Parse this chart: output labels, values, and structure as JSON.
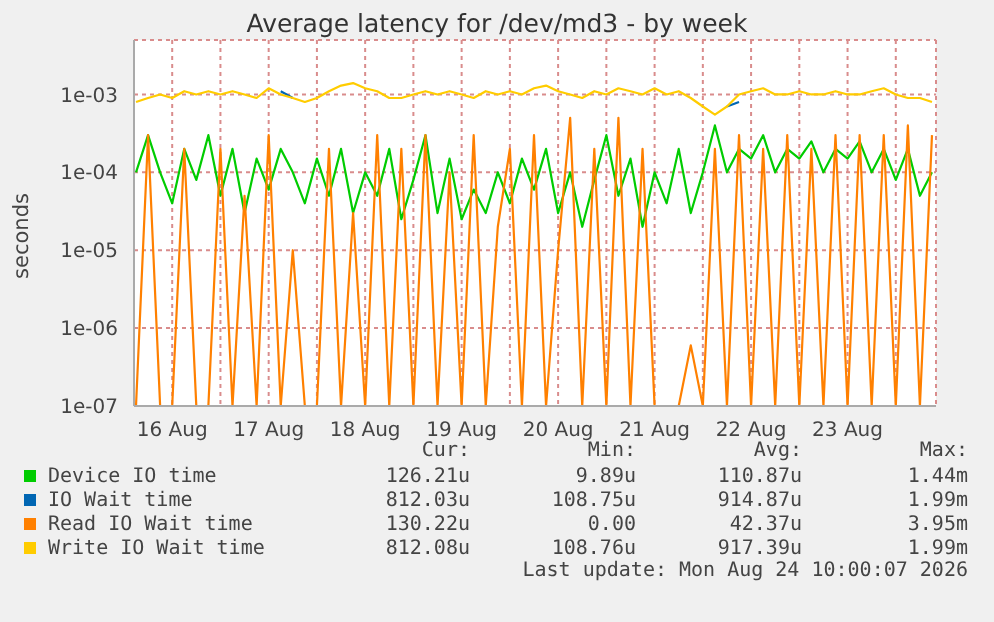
{
  "chart_data": {
    "type": "line",
    "title": "Average latency for /dev/md3 - by week",
    "ylabel": "seconds",
    "log": "y",
    "grid": true,
    "legend": "bottom",
    "marker": "none",
    "line_style": "solid",
    "ylim": [
      1e-07,
      0.005
    ],
    "yticks": [
      {
        "value": 1e-07,
        "label": "1e-07"
      },
      {
        "value": 1e-06,
        "label": "1e-06"
      },
      {
        "value": 1e-05,
        "label": "1e-05"
      },
      {
        "value": 0.0001,
        "label": "1e-04"
      },
      {
        "value": 0.001,
        "label": "1e-03"
      }
    ],
    "xlim": [
      "2026-08-16T02:30",
      "2026-08-24T10:00"
    ],
    "xticks": [
      {
        "value": "2026-08-16T12:00",
        "label": "16 Aug"
      },
      {
        "value": "2026-08-17T00:00",
        "label": null
      },
      {
        "value": "2026-08-17T12:00",
        "label": "17 Aug"
      },
      {
        "value": "2026-08-18T00:00",
        "label": null
      },
      {
        "value": "2026-08-18T12:00",
        "label": "18 Aug"
      },
      {
        "value": "2026-08-19T00:00",
        "label": null
      },
      {
        "value": "2026-08-19T12:00",
        "label": "19 Aug"
      },
      {
        "value": "2026-08-20T00:00",
        "label": null
      },
      {
        "value": "2026-08-20T12:00",
        "label": "20 Aug"
      },
      {
        "value": "2026-08-21T00:00",
        "label": null
      },
      {
        "value": "2026-08-21T12:00",
        "label": "21 Aug"
      },
      {
        "value": "2026-08-22T00:00",
        "label": null
      },
      {
        "value": "2026-08-22T12:00",
        "label": "22 Aug"
      },
      {
        "value": "2026-08-23T00:00",
        "label": null
      },
      {
        "value": "2026-08-23T12:00",
        "label": "23 Aug"
      },
      {
        "value": "2026-08-24T00:00",
        "label": null
      }
    ],
    "x": [
      "2026-08-16T03:00",
      "2026-08-16T06:00",
      "2026-08-16T09:00",
      "2026-08-16T12:00",
      "2026-08-16T15:00",
      "2026-08-16T18:00",
      "2026-08-16T21:00",
      "2026-08-17T00:00",
      "2026-08-17T03:00",
      "2026-08-17T06:00",
      "2026-08-17T09:00",
      "2026-08-17T12:00",
      "2026-08-17T15:00",
      "2026-08-17T18:00",
      "2026-08-17T21:00",
      "2026-08-18T00:00",
      "2026-08-18T03:00",
      "2026-08-18T06:00",
      "2026-08-18T09:00",
      "2026-08-18T12:00",
      "2026-08-18T15:00",
      "2026-08-18T18:00",
      "2026-08-18T21:00",
      "2026-08-19T00:00",
      "2026-08-19T03:00",
      "2026-08-19T06:00",
      "2026-08-19T09:00",
      "2026-08-19T12:00",
      "2026-08-19T15:00",
      "2026-08-19T18:00",
      "2026-08-19T21:00",
      "2026-08-20T00:00",
      "2026-08-20T03:00",
      "2026-08-20T06:00",
      "2026-08-20T09:00",
      "2026-08-20T12:00",
      "2026-08-20T15:00",
      "2026-08-20T18:00",
      "2026-08-20T21:00",
      "2026-08-21T00:00",
      "2026-08-21T03:00",
      "2026-08-21T06:00",
      "2026-08-21T09:00",
      "2026-08-21T12:00",
      "2026-08-21T15:00",
      "2026-08-21T18:00",
      "2026-08-21T21:00",
      "2026-08-22T00:00",
      "2026-08-22T03:00",
      "2026-08-22T06:00",
      "2026-08-22T09:00",
      "2026-08-22T12:00",
      "2026-08-22T15:00",
      "2026-08-22T18:00",
      "2026-08-22T21:00",
      "2026-08-23T00:00",
      "2026-08-23T03:00",
      "2026-08-23T06:00",
      "2026-08-23T09:00",
      "2026-08-23T12:00",
      "2026-08-23T15:00",
      "2026-08-23T18:00",
      "2026-08-23T21:00",
      "2026-08-24T00:00",
      "2026-08-24T03:00",
      "2026-08-24T06:00",
      "2026-08-24T09:00"
    ],
    "series": [
      {
        "name": "Device IO time",
        "color": "#00cc00",
        "values": [
          0.0001,
          0.0003,
          0.0001,
          4e-05,
          0.0002,
          8e-05,
          0.0003,
          5e-05,
          0.0002,
          3e-05,
          0.00015,
          6e-05,
          0.0002,
          0.0001,
          4e-05,
          0.00015,
          5e-05,
          0.0002,
          3e-05,
          0.0001,
          5e-05,
          0.0002,
          2.5e-05,
          8e-05,
          0.0003,
          3e-05,
          0.00015,
          2.5e-05,
          6e-05,
          3e-05,
          0.0001,
          4e-05,
          0.00015,
          6e-05,
          0.0002,
          3e-05,
          0.0001,
          2e-05,
          8e-05,
          0.0003,
          5e-05,
          0.00015,
          2e-05,
          0.0001,
          4e-05,
          0.0002,
          3e-05,
          0.0001,
          0.0004,
          0.0001,
          0.0002,
          0.00015,
          0.0003,
          0.0001,
          0.0002,
          0.00015,
          0.00025,
          0.0001,
          0.0002,
          0.00015,
          0.00025,
          0.0001,
          0.0002,
          8e-05,
          0.0002,
          5e-05,
          0.0001
        ]
      },
      {
        "name": "IO Wait time",
        "color": "#0066b3",
        "values": [
          null,
          null,
          null,
          null,
          null,
          null,
          null,
          null,
          null,
          null,
          null,
          null,
          0.0011,
          0.0009,
          null,
          null,
          null,
          null,
          null,
          null,
          null,
          null,
          null,
          null,
          null,
          null,
          null,
          null,
          null,
          null,
          null,
          null,
          null,
          null,
          null,
          null,
          null,
          null,
          null,
          null,
          null,
          null,
          null,
          null,
          null,
          null,
          null,
          null,
          null,
          0.0007,
          0.0008,
          null,
          null,
          null,
          null,
          null,
          null,
          null,
          null,
          null,
          null,
          null,
          null,
          null,
          null,
          null,
          null
        ]
      },
      {
        "name": "Read IO Wait time",
        "color": "#ff8000",
        "values": [
          1e-07,
          0.0003,
          1e-07,
          1e-07,
          0.0002,
          1e-07,
          1e-07,
          0.0002,
          1e-07,
          5e-05,
          1e-07,
          0.0003,
          1e-07,
          1e-05,
          1e-07,
          1e-07,
          0.0002,
          1e-07,
          3e-05,
          1e-07,
          0.0003,
          1e-07,
          0.0002,
          1e-07,
          0.0003,
          1e-07,
          0.0001,
          1e-07,
          0.0003,
          1e-07,
          2e-05,
          0.0002,
          1e-07,
          0.0003,
          1e-07,
          1e-05,
          0.0005,
          1e-07,
          0.0002,
          1e-07,
          0.0005,
          1e-07,
          0.0002,
          1e-07,
          null,
          1e-07,
          6e-07,
          1e-07,
          0.0002,
          1e-07,
          0.0003,
          1e-07,
          0.0002,
          1e-07,
          0.0003,
          1e-07,
          0.0002,
          1e-07,
          0.0003,
          1e-07,
          0.0003,
          1e-07,
          0.0003,
          1e-07,
          0.0004,
          1e-07,
          0.0003
        ]
      },
      {
        "name": "Write IO Wait time",
        "color": "#ffcc00",
        "values": [
          0.0008,
          0.0009,
          0.001,
          0.0009,
          0.0011,
          0.001,
          0.0011,
          0.001,
          0.0011,
          0.001,
          0.0009,
          0.0012,
          0.001,
          0.0009,
          0.0008,
          0.0009,
          0.0011,
          0.0013,
          0.0014,
          0.0012,
          0.0011,
          0.0009,
          0.0009,
          0.001,
          0.0011,
          0.001,
          0.0011,
          0.001,
          0.0009,
          0.0011,
          0.001,
          0.0011,
          0.001,
          0.0012,
          0.0013,
          0.0011,
          0.001,
          0.0009,
          0.0011,
          0.001,
          0.0012,
          0.0011,
          0.001,
          0.0012,
          0.001,
          0.0011,
          0.0009,
          0.0007,
          0.00055,
          0.0007,
          0.001,
          0.0011,
          0.0012,
          0.001,
          0.001,
          0.0011,
          0.001,
          0.001,
          0.0011,
          0.001,
          0.001,
          0.0011,
          0.0012,
          0.001,
          0.0009,
          0.0009,
          0.0008
        ]
      }
    ],
    "annotations": [
      "Cur:",
      "Min:",
      "Avg:",
      "Max:",
      "126.21u",
      "9.89u",
      "110.87u",
      "1.44m",
      "812.03u",
      "108.75u",
      "914.87u",
      "1.99m",
      "130.22u",
      "0.00",
      "42.37u",
      "3.95m",
      "812.08u",
      "108.76u",
      "917.39u",
      "1.99m",
      "Last update: Mon Aug 24 10:00:07 2026"
    ]
  }
}
